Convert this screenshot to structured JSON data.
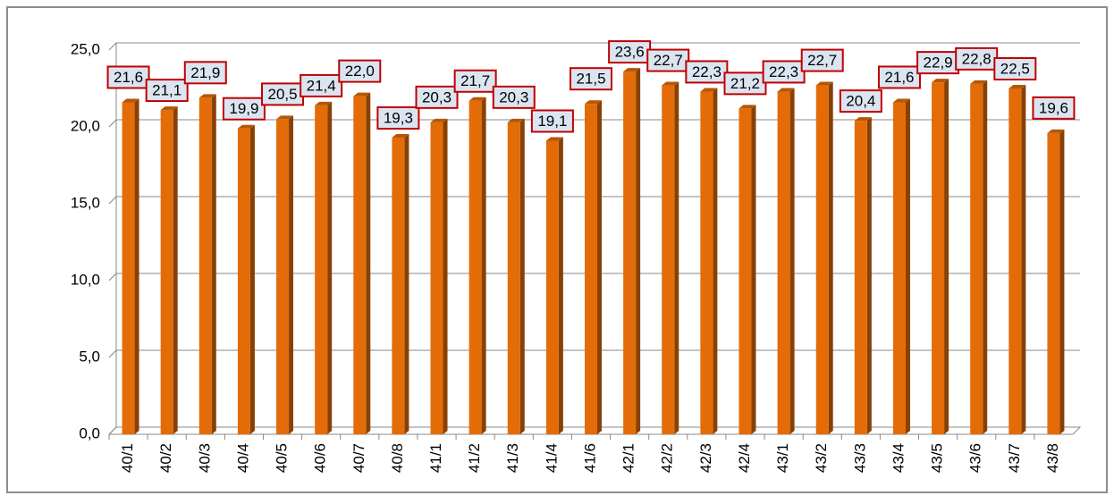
{
  "chart_data": {
    "type": "bar",
    "categories": [
      "40/1",
      "40/2",
      "40/3",
      "40/4",
      "40/5",
      "40/6",
      "40/7",
      "40/8",
      "41/1",
      "41/2",
      "41/3",
      "41/4",
      "41/6",
      "42/1",
      "42/2",
      "42/3",
      "42/4",
      "43/1",
      "43/2",
      "43/3",
      "43/4",
      "43/5",
      "43/6",
      "43/7",
      "43/8"
    ],
    "values": [
      21.6,
      21.1,
      21.9,
      19.9,
      20.5,
      21.4,
      22.0,
      19.3,
      20.3,
      21.7,
      20.3,
      19.1,
      21.5,
      23.6,
      22.7,
      22.3,
      21.2,
      22.3,
      22.7,
      20.4,
      21.6,
      22.9,
      22.8,
      22.5,
      19.6
    ],
    "value_labels": [
      "21,6",
      "21,1",
      "21,9",
      "19,9",
      "20,5",
      "21,4",
      "22,0",
      "19,3",
      "20,3",
      "21,7",
      "20,3",
      "19,1",
      "21,5",
      "23,6",
      "22,7",
      "22,3",
      "21,2",
      "22,3",
      "22,7",
      "20,4",
      "21,6",
      "22,9",
      "22,8",
      "22,5",
      "19,6"
    ],
    "color": "#e36c09",
    "ylim": [
      0,
      25
    ],
    "yticks": [
      {
        "value": 0,
        "label": "0,0"
      },
      {
        "value": 5,
        "label": "5,0"
      },
      {
        "value": 10,
        "label": "10,0"
      },
      {
        "value": 15,
        "label": "15,0"
      },
      {
        "value": 20,
        "label": "20,0"
      },
      {
        "value": 25,
        "label": "25,0"
      }
    ],
    "grid": true
  }
}
